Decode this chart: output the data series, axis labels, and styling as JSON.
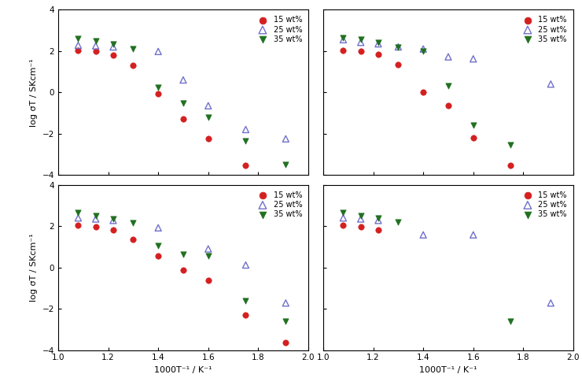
{
  "panels": {
    "a_air": {
      "red_x": [
        1.08,
        1.15,
        1.22,
        1.3,
        1.4,
        1.5,
        1.6,
        1.75,
        1.91
      ],
      "red_y": [
        2.02,
        1.98,
        1.82,
        1.3,
        -0.08,
        -1.3,
        -2.25,
        -3.55,
        null
      ],
      "blue_x": [
        1.08,
        1.15,
        1.22,
        1.4,
        1.5,
        1.6,
        1.75,
        1.91
      ],
      "blue_y": [
        2.28,
        2.25,
        2.2,
        1.98,
        0.6,
        -0.65,
        -1.8,
        -2.25
      ],
      "green_x": [
        1.08,
        1.15,
        1.22,
        1.3,
        1.4,
        1.5,
        1.6,
        1.75,
        1.91
      ],
      "green_y": [
        2.6,
        2.48,
        2.32,
        2.12,
        0.25,
        -0.52,
        -1.22,
        -2.35,
        -3.5
      ]
    },
    "b_wetair": {
      "red_x": [
        1.08,
        1.15,
        1.22,
        1.3,
        1.4,
        1.5,
        1.6,
        1.75
      ],
      "red_y": [
        2.02,
        1.98,
        1.85,
        1.35,
        0.02,
        -0.65,
        -2.2,
        -3.55
      ],
      "blue_x": [
        1.08,
        1.15,
        1.22,
        1.3,
        1.4,
        1.5,
        1.6,
        1.91
      ],
      "blue_y": [
        2.55,
        2.42,
        2.35,
        2.2,
        2.1,
        1.72,
        1.62,
        0.4
      ],
      "green_x": [
        1.08,
        1.15,
        1.22,
        1.3,
        1.4,
        1.5,
        1.6,
        1.75,
        1.91
      ],
      "green_y": [
        2.65,
        2.55,
        2.4,
        2.2,
        2.0,
        0.3,
        -1.6,
        -2.55,
        null
      ]
    },
    "c_5h2": {
      "red_x": [
        1.08,
        1.15,
        1.22,
        1.3,
        1.4,
        1.5,
        1.6,
        1.75,
        1.91
      ],
      "red_y": [
        2.05,
        1.98,
        1.82,
        1.35,
        0.55,
        -0.12,
        -0.62,
        -2.3,
        -3.65
      ],
      "blue_x": [
        1.08,
        1.15,
        1.22,
        1.4,
        1.6,
        1.75,
        1.91
      ],
      "blue_y": [
        2.4,
        2.35,
        2.28,
        1.92,
        0.9,
        0.12,
        -1.72
      ],
      "green_x": [
        1.08,
        1.15,
        1.22,
        1.3,
        1.4,
        1.5,
        1.6,
        1.75,
        1.91
      ],
      "green_y": [
        2.65,
        2.52,
        2.35,
        2.18,
        1.05,
        0.62,
        0.55,
        -1.62,
        -2.62
      ]
    },
    "d_wet5h2": {
      "red_x": [
        1.08,
        1.15,
        1.22
      ],
      "red_y": [
        2.05,
        1.98,
        1.82
      ],
      "blue_x": [
        1.08,
        1.15,
        1.22,
        1.4,
        1.6,
        1.91
      ],
      "blue_y": [
        2.4,
        2.35,
        2.28,
        1.58,
        1.58,
        -1.72
      ],
      "green_x": [
        1.08,
        1.15,
        1.22,
        1.3,
        1.75
      ],
      "green_y": [
        2.65,
        2.52,
        2.38,
        2.2,
        -2.62
      ]
    }
  },
  "xlim": [
    1.0,
    2.0
  ],
  "ylim": [
    -4,
    4
  ],
  "yticks": [
    -4,
    -2,
    0,
    2,
    4
  ],
  "xticks": [
    1.0,
    1.2,
    1.4,
    1.6,
    1.8,
    2.0
  ],
  "ylabel": "log σT / SKcm⁻¹",
  "xlabel": "1000T⁻¹ / K⁻¹",
  "red_color": "#d42020",
  "blue_color": "#7070cc",
  "green_color": "#207020",
  "marker_size": 28
}
